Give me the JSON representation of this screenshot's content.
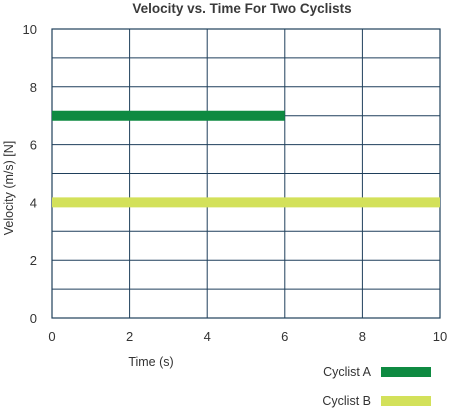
{
  "chart_data": {
    "type": "line",
    "title": "Velocity vs. Time For Two Cyclists",
    "xlabel": "Time (s)",
    "ylabel": "Velocity (m/s)  [N]",
    "xlim": [
      0,
      10
    ],
    "ylim": [
      0,
      10
    ],
    "x_ticks": [
      "0",
      "2",
      "4",
      "6",
      "8",
      "10"
    ],
    "y_ticks": [
      "0",
      "2",
      "4",
      "6",
      "8",
      "10"
    ],
    "grid": true,
    "legend_position": "bottom-right",
    "series": [
      {
        "name": "Cyclist A",
        "color": "#0e8a41",
        "x": [
          0,
          6
        ],
        "y": [
          7,
          7
        ]
      },
      {
        "name": "Cyclist B",
        "color": "#d3e15a",
        "x": [
          0,
          10
        ],
        "y": [
          4,
          4
        ]
      }
    ]
  }
}
